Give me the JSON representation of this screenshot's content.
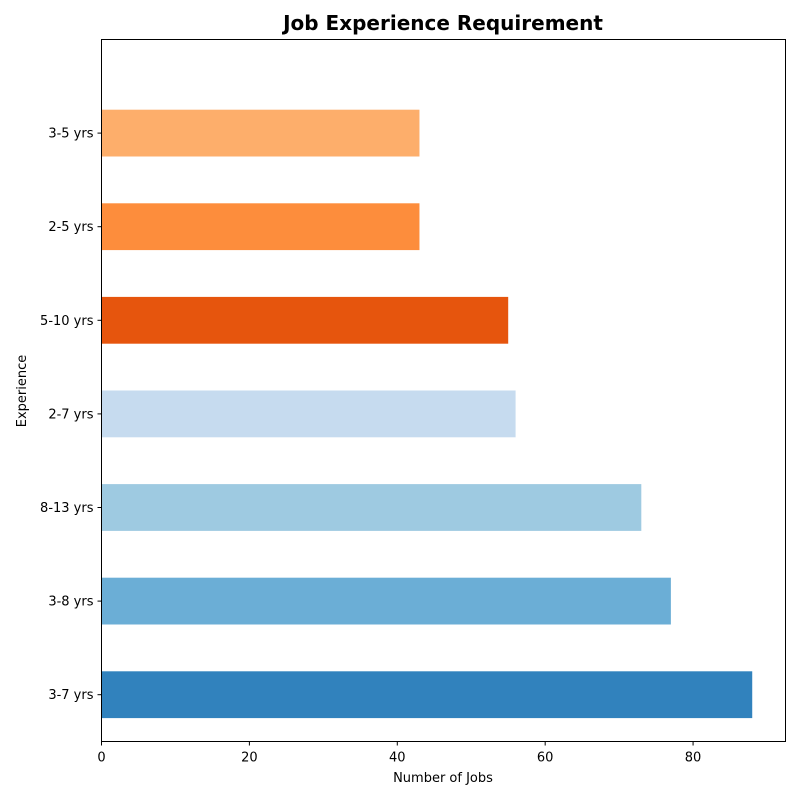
{
  "chart_data": {
    "type": "bar",
    "orientation": "horizontal",
    "title": "Job Experience Requirement",
    "xlabel": "Number of Jobs",
    "ylabel": "Experience",
    "categories": [
      "3-7 yrs",
      "3-8 yrs",
      "8-13 yrs",
      "2-7 yrs",
      "5-10 yrs",
      "2-5 yrs",
      "3-5 yrs"
    ],
    "values": [
      88,
      77,
      73,
      56,
      55,
      43,
      43
    ],
    "colors": [
      "#3182bd",
      "#6baed6",
      "#9ecae1",
      "#c6dbef",
      "#e6550d",
      "#fd8d3c",
      "#fdae6b"
    ],
    "xlim": [
      0,
      92.5
    ],
    "xticks": [
      0,
      20,
      40,
      60,
      80
    ],
    "grid": false,
    "legend": "none"
  }
}
